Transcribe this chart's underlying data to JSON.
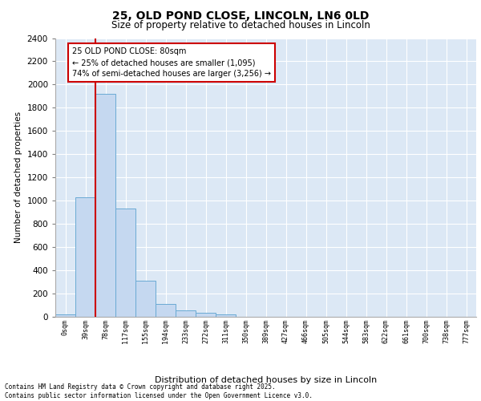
{
  "title_line1": "25, OLD POND CLOSE, LINCOLN, LN6 0LD",
  "title_line2": "Size of property relative to detached houses in Lincoln",
  "xlabel": "Distribution of detached houses by size in Lincoln",
  "ylabel": "Number of detached properties",
  "categories": [
    "0sqm",
    "39sqm",
    "78sqm",
    "117sqm",
    "155sqm",
    "194sqm",
    "233sqm",
    "272sqm",
    "311sqm",
    "350sqm",
    "389sqm",
    "427sqm",
    "466sqm",
    "505sqm",
    "544sqm",
    "583sqm",
    "622sqm",
    "661sqm",
    "700sqm",
    "738sqm",
    "777sqm"
  ],
  "values": [
    18,
    1030,
    1920,
    930,
    310,
    110,
    55,
    32,
    18,
    0,
    0,
    0,
    0,
    0,
    0,
    0,
    0,
    0,
    0,
    0,
    0
  ],
  "bar_color": "#c5d8f0",
  "bar_edge_color": "#6aaad4",
  "vline_x": 2.0,
  "vline_color": "#cc0000",
  "annotation_text": "25 OLD POND CLOSE: 80sqm\n← 25% of detached houses are smaller (1,095)\n74% of semi-detached houses are larger (3,256) →",
  "annotation_box_color": "#cc0000",
  "ylim": [
    0,
    2400
  ],
  "yticks": [
    0,
    200,
    400,
    600,
    800,
    1000,
    1200,
    1400,
    1600,
    1800,
    2000,
    2200,
    2400
  ],
  "background_color": "#dce8f5",
  "footer_line1": "Contains HM Land Registry data © Crown copyright and database right 2025.",
  "footer_line2": "Contains public sector information licensed under the Open Government Licence v3.0."
}
